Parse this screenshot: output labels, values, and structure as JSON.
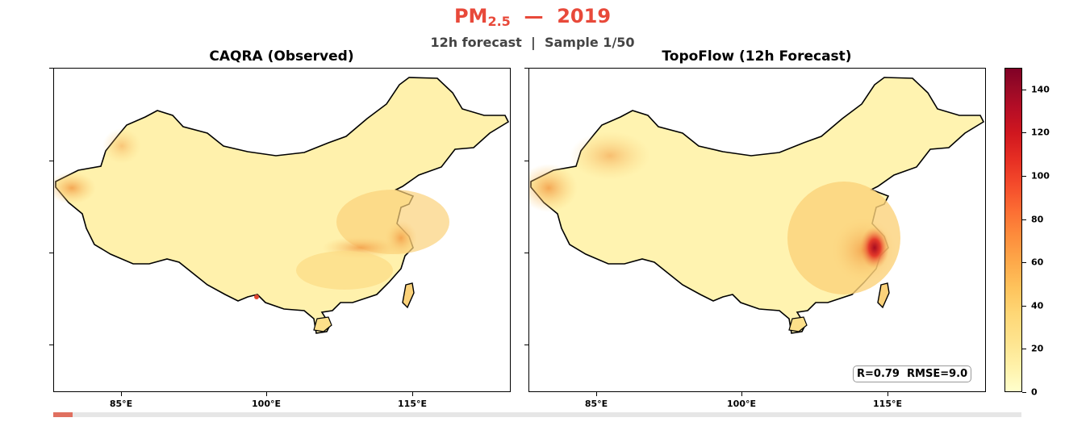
{
  "header": {
    "title_main": "PM",
    "title_sub": "2.5",
    "title_rest": "  —  2019",
    "subtitle": "12h forecast  |  Sample 1/50"
  },
  "panels": [
    {
      "title": "CAQRA (Observed)"
    },
    {
      "title": "TopoFlow (12h Forecast)"
    }
  ],
  "x_ticks": [
    "85°E",
    "100°E",
    "115°E"
  ],
  "colorbar": {
    "labels": [
      "0",
      "20",
      "40",
      "60",
      "80",
      "100",
      "120",
      "140"
    ],
    "min": 0,
    "max": 150
  },
  "stats": {
    "text": "R=0.79  RMSE=9.0"
  },
  "progress": {
    "current": 1,
    "total": 50
  },
  "colors": {
    "title": "#e8493a",
    "land_low": "#fff3b0",
    "land_mid": "#fde08a",
    "land_high": "#f5a04a",
    "hotspot": "#c01a20"
  }
}
